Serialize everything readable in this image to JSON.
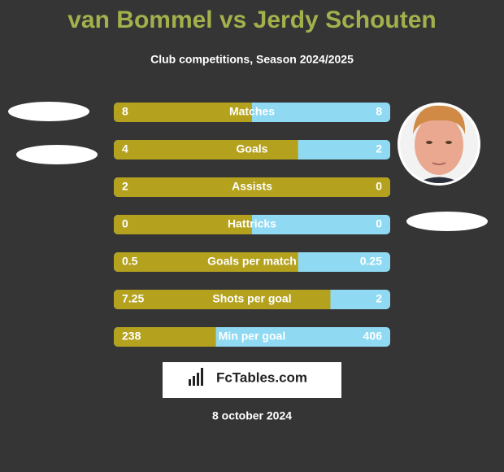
{
  "header": {
    "title": "van Bommel vs Jerdy Schouten",
    "subtitle": "Club competitions, Season 2024/2025"
  },
  "rows": [
    {
      "label": "Matches",
      "left": 8,
      "right": 8
    },
    {
      "label": "Goals",
      "left": 4,
      "right": 2
    },
    {
      "label": "Assists",
      "left": 2,
      "right": 0
    },
    {
      "label": "Hattricks",
      "left": 0,
      "right": 0
    },
    {
      "label": "Goals per match",
      "left": 0.5,
      "right": 0.25
    },
    {
      "label": "Shots per goal",
      "left": 7.25,
      "right": 2
    },
    {
      "label": "Min per goal",
      "left": 238,
      "right": 406
    }
  ],
  "logo": "FcTables.com",
  "date": "8 october 2024"
}
